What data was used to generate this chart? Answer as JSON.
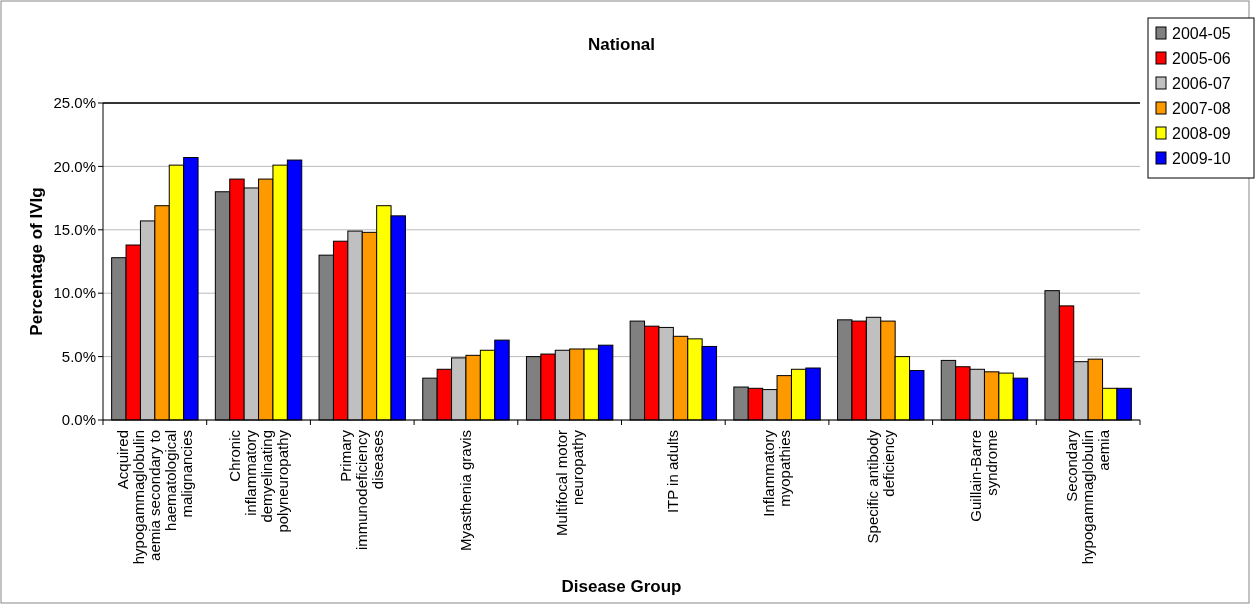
{
  "chart_data": {
    "type": "bar",
    "title": "National",
    "xlabel": "Disease Group",
    "ylabel": "Percentage of IVIg",
    "categories": [
      "Acquired hypogammaglobulin aemia secondary to haematological malignancies",
      "Chronic inflammatory demyelinating polyneuropathy",
      "Primary immunodeficiency diseases",
      "Myasthenia gravis",
      "Multifocal motor neuropathy",
      "ITP in adults",
      "Inflammatory myopathies",
      "Specific antibody deficiency",
      "Guillain-Barre syndrome",
      "Secondary hypogammaglobulin aemia"
    ],
    "series": [
      {
        "name": "2004-05",
        "color": "#808080",
        "values": [
          12.8,
          18.0,
          13.0,
          3.3,
          5.0,
          7.8,
          2.6,
          7.9,
          4.7,
          10.2
        ]
      },
      {
        "name": "2005-06",
        "color": "#ff0000",
        "values": [
          13.8,
          19.0,
          14.1,
          4.0,
          5.2,
          7.4,
          2.5,
          7.8,
          4.2,
          9.0
        ]
      },
      {
        "name": "2006-07",
        "color": "#c0c0c0",
        "values": [
          15.7,
          18.3,
          14.9,
          4.9,
          5.5,
          7.3,
          2.4,
          8.1,
          4.0,
          4.6
        ]
      },
      {
        "name": "2007-08",
        "color": "#ff9900",
        "values": [
          16.9,
          19.0,
          14.8,
          5.1,
          5.6,
          6.6,
          3.5,
          7.8,
          3.8,
          4.8
        ]
      },
      {
        "name": "2008-09",
        "color": "#ffff00",
        "values": [
          20.1,
          20.1,
          16.9,
          5.5,
          5.6,
          6.4,
          4.0,
          5.0,
          3.7,
          2.5
        ]
      },
      {
        "name": "2009-10",
        "color": "#0000ff",
        "values": [
          20.7,
          20.5,
          16.1,
          6.3,
          5.9,
          5.8,
          4.1,
          3.9,
          3.3,
          2.5
        ]
      }
    ],
    "ylim": [
      0,
      25
    ],
    "yticks": [
      {
        "value": 0,
        "label": "0.0%"
      },
      {
        "value": 5,
        "label": "5.0%"
      },
      {
        "value": 10,
        "label": "10.0%"
      },
      {
        "value": 15,
        "label": "15.0%"
      },
      {
        "value": 20,
        "label": "20.0%"
      },
      {
        "value": 25,
        "label": "25.0%"
      }
    ],
    "grid": "y",
    "legend": "top right"
  }
}
